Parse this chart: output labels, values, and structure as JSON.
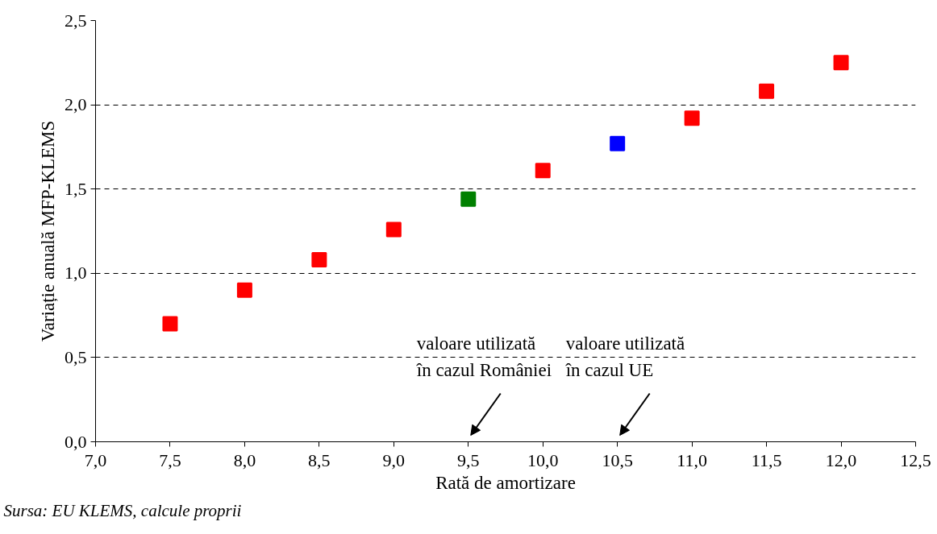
{
  "chart_data": {
    "type": "scatter",
    "xlabel": "Rată de amortizare",
    "ylabel": "Variație anuală MFP-KLEMS",
    "xlim": [
      7.0,
      12.5
    ],
    "xticks": [
      {
        "value": 7.0,
        "label": "7,0"
      },
      {
        "value": 7.5,
        "label": "7,5"
      },
      {
        "value": 8.0,
        "label": "8,0"
      },
      {
        "value": 8.5,
        "label": "8,5"
      },
      {
        "value": 9.0,
        "label": "9,0"
      },
      {
        "value": 9.5,
        "label": "9,5"
      },
      {
        "value": 10.0,
        "label": "10,0"
      },
      {
        "value": 10.5,
        "label": "10,5"
      },
      {
        "value": 11.0,
        "label": "11,0"
      },
      {
        "value": 11.5,
        "label": "11,5"
      },
      {
        "value": 12.0,
        "label": "12,0"
      },
      {
        "value": 12.5,
        "label": "12,5"
      }
    ],
    "ylim": [
      0.0,
      2.5
    ],
    "yticks": [
      {
        "value": 0.0,
        "label": "0,0"
      },
      {
        "value": 0.5,
        "label": "0,5"
      },
      {
        "value": 1.0,
        "label": "1,0"
      },
      {
        "value": 1.5,
        "label": "1,5"
      },
      {
        "value": 2.0,
        "label": "2,0"
      },
      {
        "value": 2.5,
        "label": "2,5"
      }
    ],
    "grid": "y",
    "series": [
      {
        "color": "#ff0000",
        "marker": "square",
        "x": [
          7.5,
          8.0,
          8.5,
          9.0,
          10.0,
          11.0,
          11.5,
          12.0
        ],
        "values": [
          0.7,
          0.9,
          1.08,
          1.26,
          1.61,
          1.92,
          2.08,
          2.25
        ]
      },
      {
        "color": "#008000",
        "marker": "square",
        "x": [
          9.5
        ],
        "values": [
          1.44
        ]
      },
      {
        "color": "#0000ff",
        "marker": "square",
        "x": [
          10.5
        ],
        "values": [
          1.77
        ]
      }
    ],
    "annotations": [
      "valoare utilizată\nîn cazul României",
      "valoare utilizată\nîn cazul UE",
      "Sursa: EU KLEMS, calcule proprii"
    ]
  }
}
